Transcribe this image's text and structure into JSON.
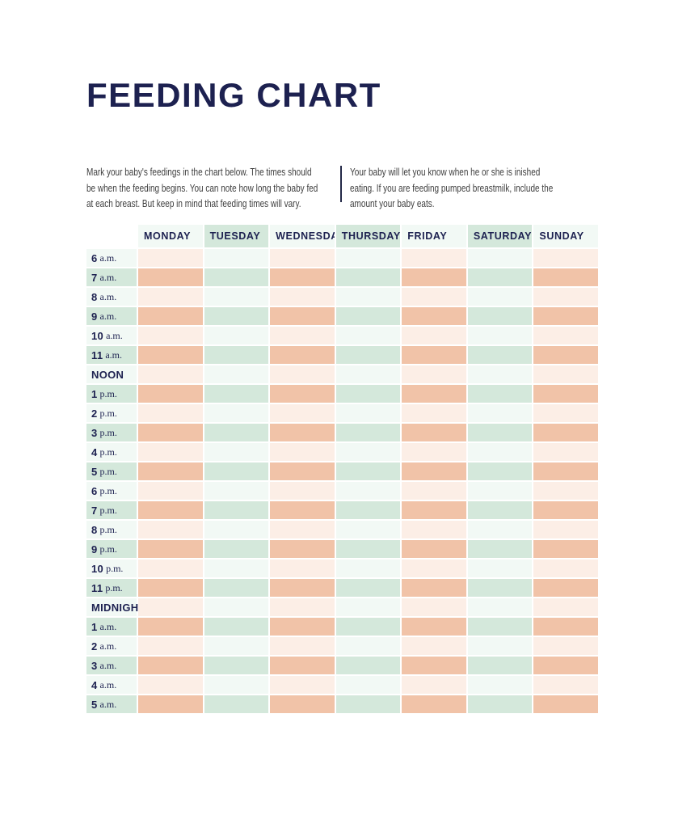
{
  "document": {
    "title": "FEEDING CHART"
  },
  "intro": {
    "left_lines": [
      "Mark your baby's feedings in the chart below. The times should",
      "be when the feeding begins. You can note how long the baby fed",
      "at each breast. But keep in mind that feeding times will vary."
    ],
    "right_lines": [
      "Your baby will let you know when he or she is inished",
      "eating. If you are feeding pumped breastmilk, include the",
      "amount your baby eats."
    ]
  },
  "chart": {
    "day_headers": [
      "MONDAY",
      "TUESDAY",
      "WEDNESDAY",
      "THURSDAY",
      "FRIDAY",
      "SATURDAY",
      "SUNDAY"
    ],
    "time_rows": [
      {
        "num": "6",
        "unit": "a.m."
      },
      {
        "num": "7",
        "unit": "a.m."
      },
      {
        "num": "8",
        "unit": "a.m."
      },
      {
        "num": "9",
        "unit": "a.m."
      },
      {
        "num": "10",
        "unit": "a.m."
      },
      {
        "num": "11",
        "unit": "a.m."
      },
      {
        "label": "NOON"
      },
      {
        "num": "1",
        "unit": "p.m."
      },
      {
        "num": "2",
        "unit": "p.m."
      },
      {
        "num": "3",
        "unit": "p.m."
      },
      {
        "num": "4",
        "unit": "p.m."
      },
      {
        "num": "5",
        "unit": "p.m."
      },
      {
        "num": "6",
        "unit": "p.m."
      },
      {
        "num": "7",
        "unit": "p.m."
      },
      {
        "num": "8",
        "unit": "p.m."
      },
      {
        "num": "9",
        "unit": "p.m."
      },
      {
        "num": "10",
        "unit": "p.m."
      },
      {
        "num": "11",
        "unit": "p.m."
      },
      {
        "label": "MIDNIGHT"
      },
      {
        "num": "1",
        "unit": "a.m."
      },
      {
        "num": "2",
        "unit": "a.m."
      },
      {
        "num": "3",
        "unit": "a.m."
      },
      {
        "num": "4",
        "unit": "a.m."
      },
      {
        "num": "5",
        "unit": "a.m."
      }
    ],
    "cells_are_blank": true
  },
  "colors": {
    "title_navy": "#1d2150",
    "body_text": "#3e3e3e",
    "divider": "#242948",
    "peach_strong": "#f1c3a8",
    "peach_light": "#fceee6",
    "mint": "#d4e8db",
    "mint_pale": "#f2f9f5"
  }
}
